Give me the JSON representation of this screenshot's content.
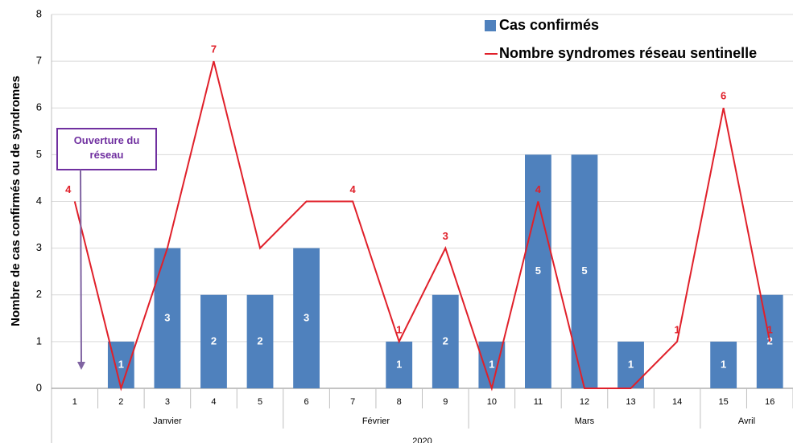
{
  "chart_data": {
    "type": "bar_line",
    "y_label": "Nombre de cas confirmés ou de syndromes",
    "categories": [
      "1",
      "2",
      "3",
      "4",
      "5",
      "6",
      "7",
      "8",
      "9",
      "10",
      "11",
      "12",
      "13",
      "14",
      "15",
      "16"
    ],
    "x_groups": [
      "Janvier",
      "Janvier",
      "Janvier",
      "Janvier",
      "Janvier",
      "Février",
      "Février",
      "Février",
      "Février",
      "Mars",
      "Mars",
      "Mars",
      "Mars",
      "Mars",
      "Avril",
      "Avril"
    ],
    "x_super_label": "2020",
    "ylim": [
      0,
      8
    ],
    "yticks": [
      0,
      1,
      2,
      3,
      4,
      5,
      6,
      7,
      8
    ],
    "grid": true,
    "legend": "top-right",
    "series": [
      {
        "name": "Cas confirmés",
        "kind": "bar",
        "color": "#4f81bd",
        "values": [
          null,
          1,
          3,
          2,
          2,
          3,
          null,
          1,
          2,
          1,
          5,
          5,
          1,
          null,
          1,
          2
        ]
      },
      {
        "name": "Nombre syndromes réseau sentinelle",
        "kind": "line",
        "color": "#e0202a",
        "values": [
          4,
          0,
          3,
          7,
          3,
          4,
          4,
          1,
          3,
          0,
          4,
          0,
          0,
          1,
          6,
          1
        ],
        "value_labels": [
          "4",
          null,
          null,
          "7",
          null,
          null,
          "4",
          "1",
          "3",
          null,
          "4",
          null,
          null,
          "1",
          "6",
          "1"
        ]
      }
    ],
    "annotation": "Ouverture du réseau"
  }
}
